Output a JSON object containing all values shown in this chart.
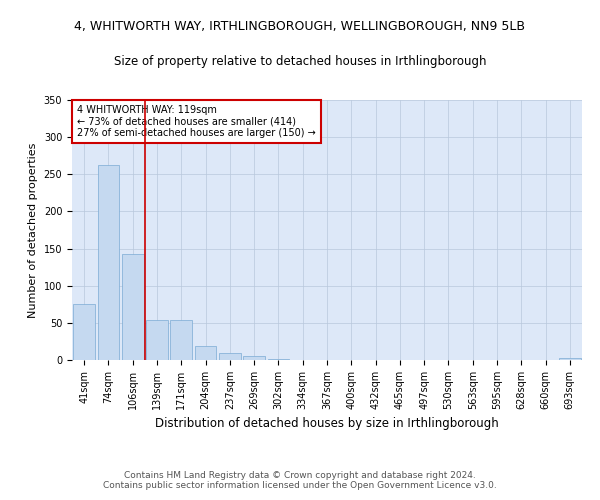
{
  "title": "4, WHITWORTH WAY, IRTHLINGBOROUGH, WELLINGBOROUGH, NN9 5LB",
  "subtitle": "Size of property relative to detached houses in Irthlingborough",
  "xlabel": "Distribution of detached houses by size in Irthlingborough",
  "ylabel": "Number of detached properties",
  "categories": [
    "41sqm",
    "74sqm",
    "106sqm",
    "139sqm",
    "171sqm",
    "204sqm",
    "237sqm",
    "269sqm",
    "302sqm",
    "334sqm",
    "367sqm",
    "400sqm",
    "432sqm",
    "465sqm",
    "497sqm",
    "530sqm",
    "563sqm",
    "595sqm",
    "628sqm",
    "660sqm",
    "693sqm"
  ],
  "values": [
    76,
    262,
    143,
    54,
    54,
    19,
    9,
    5,
    2,
    0,
    0,
    0,
    0,
    0,
    0,
    0,
    0,
    0,
    0,
    0,
    3
  ],
  "bar_color": "#c5d9f0",
  "bar_edge_color": "#7aaad4",
  "vline_x": 2.5,
  "vline_color": "#cc0000",
  "annotation_text": "4 WHITWORTH WAY: 119sqm\n← 73% of detached houses are smaller (414)\n27% of semi-detached houses are larger (150) →",
  "annotation_box_color": "#ffffff",
  "annotation_box_edge": "#cc0000",
  "footnote": "Contains HM Land Registry data © Crown copyright and database right 2024.\nContains public sector information licensed under the Open Government Licence v3.0.",
  "ylim": [
    0,
    350
  ],
  "background_color": "#dde8f8",
  "title_fontsize": 9,
  "subtitle_fontsize": 8.5,
  "xlabel_fontsize": 8.5,
  "ylabel_fontsize": 8,
  "tick_fontsize": 7,
  "footnote_fontsize": 6.5
}
